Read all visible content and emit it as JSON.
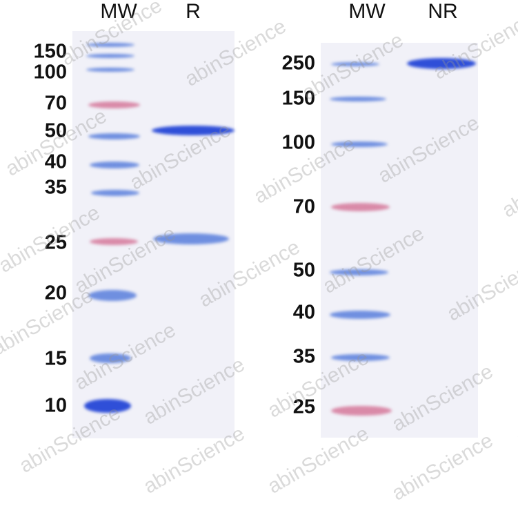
{
  "left_gel": {
    "lanes": [
      "MW",
      "R"
    ],
    "markers": [
      "150",
      "100",
      "70",
      "50",
      "40",
      "35",
      "25",
      "20",
      "15",
      "10"
    ]
  },
  "right_gel": {
    "lanes": [
      "MW",
      "NR"
    ],
    "markers": [
      "250",
      "150",
      "100",
      "70",
      "50",
      "40",
      "35",
      "25"
    ]
  },
  "watermark": "abinScience",
  "colors": {
    "band_blue": "#2f4fd8",
    "marker_pink": "#d98aa8",
    "gel_bg": "#f1f1f8"
  }
}
